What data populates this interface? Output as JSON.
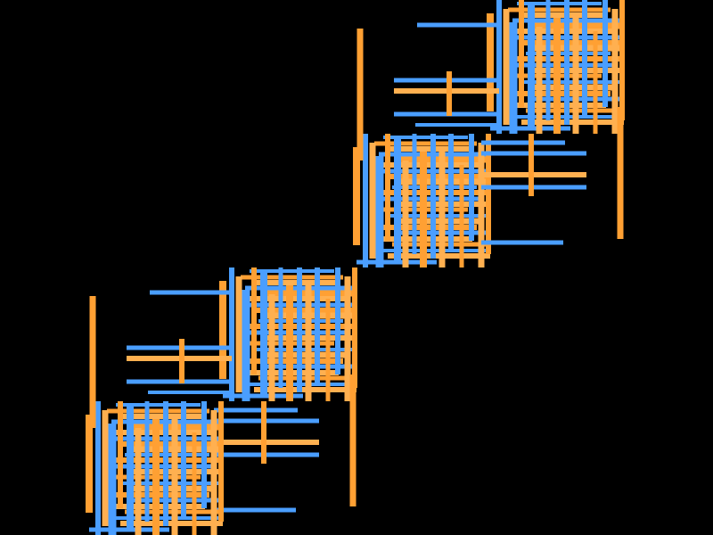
{
  "canvas": {
    "background": "#000000"
  },
  "palette": {
    "blue": "#4a9eff",
    "orange": "#ffa033",
    "orange_light": "#ffb050"
  },
  "artwork": {
    "description_hidden": true,
    "motif": "interlocking-bar-lattice",
    "clusters": 4
  }
}
